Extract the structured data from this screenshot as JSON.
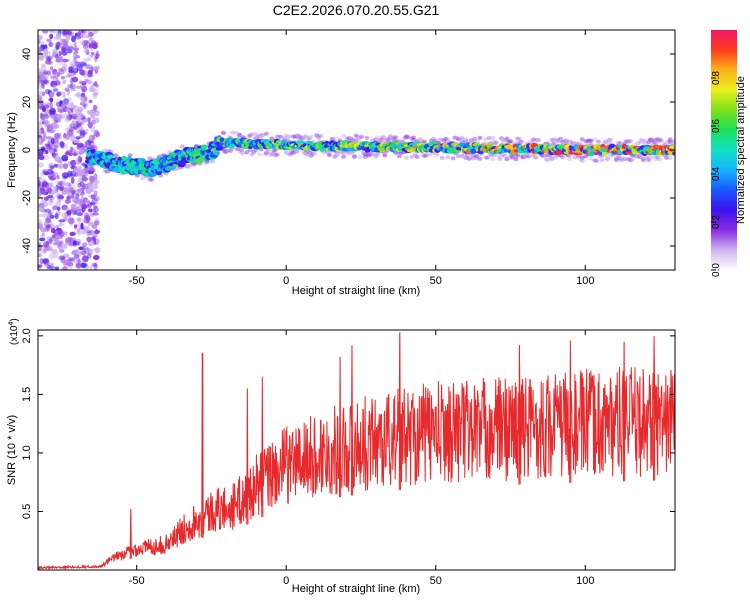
{
  "title": "C2E2.2026.070.20.55.G21",
  "colors": {
    "snr_line": "#e8282a",
    "frame": "#000000",
    "background": "#ffffff"
  },
  "chart_data": [
    {
      "type": "heatmap",
      "xlabel": "Height of straight line (km)",
      "ylabel": "Frequency (Hz)",
      "xlim": [
        -83,
        130
      ],
      "ylim": [
        -50,
        50
      ],
      "x_ticks": [
        -50,
        0,
        50,
        100
      ],
      "y_ticks": [
        -40,
        -20,
        0,
        20,
        40
      ],
      "colorbar": {
        "label": "Normalized spectral amplitude",
        "range": [
          0,
          1
        ],
        "ticks": [
          "0.0",
          "0.2",
          "0.4",
          "0.6",
          "0.8"
        ],
        "colormap": [
          "#ffffff",
          "#cdb6f0",
          "#8a2be2",
          "#3b12f0",
          "#1b56ff",
          "#15b4ff",
          "#14e0c6",
          "#1be15a",
          "#7fe01a",
          "#e9f01a",
          "#ffb21a",
          "#ff3a1a",
          "#f0186e"
        ]
      },
      "ridge": [
        {
          "x": -83,
          "f": 5
        },
        {
          "x": -65,
          "f": -3
        },
        {
          "x": -55,
          "f": -6
        },
        {
          "x": -45,
          "f": -8
        },
        {
          "x": -35,
          "f": -3
        },
        {
          "x": -25,
          "f": -1
        },
        {
          "x": -22,
          "f": 3
        },
        {
          "x": 0,
          "f": 2
        },
        {
          "x": 50,
          "f": 1
        },
        {
          "x": 100,
          "f": 0
        },
        {
          "x": 130,
          "f": 0
        }
      ]
    },
    {
      "type": "line",
      "xlabel": "Height of straight line (km)",
      "ylabel": "SNR (10 * v/v)",
      "y_multiplier": "(x10^4)",
      "multiplier_base": "(x10",
      "multiplier_exp": "4",
      "multiplier_close": ")",
      "xlim": [
        -83,
        130
      ],
      "ylim": [
        0,
        2.05
      ],
      "x_ticks": [
        -50,
        0,
        50,
        100
      ],
      "y_ticks": [
        0.5,
        1.0,
        1.5,
        2.0
      ],
      "series": [
        {
          "envelope": [
            {
              "x": -83,
              "y": 0.02
            },
            {
              "x": -62,
              "y": 0.03
            },
            {
              "x": -58,
              "y": 0.1
            },
            {
              "x": -50,
              "y": 0.18
            },
            {
              "x": -40,
              "y": 0.22
            },
            {
              "x": -32,
              "y": 0.4
            },
            {
              "x": -25,
              "y": 0.5
            },
            {
              "x": -17,
              "y": 0.55
            },
            {
              "x": -10,
              "y": 0.72
            },
            {
              "x": 0,
              "y": 0.9
            },
            {
              "x": 20,
              "y": 1.05
            },
            {
              "x": 40,
              "y": 1.15
            },
            {
              "x": 60,
              "y": 1.2
            },
            {
              "x": 80,
              "y": 1.22
            },
            {
              "x": 100,
              "y": 1.25
            },
            {
              "x": 130,
              "y": 1.28
            }
          ],
          "peaks": [
            {
              "x": -52,
              "y": 0.52
            },
            {
              "x": -28,
              "y": 1.85
            },
            {
              "x": -13,
              "y": 1.55
            },
            {
              "x": -8,
              "y": 1.65
            },
            {
              "x": 18,
              "y": 1.82
            },
            {
              "x": 22,
              "y": 1.92
            },
            {
              "x": 38,
              "y": 2.03
            },
            {
              "x": 78,
              "y": 1.92
            },
            {
              "x": 95,
              "y": 1.96
            },
            {
              "x": 113,
              "y": 1.95
            },
            {
              "x": 123,
              "y": 2.0
            }
          ]
        }
      ]
    }
  ]
}
